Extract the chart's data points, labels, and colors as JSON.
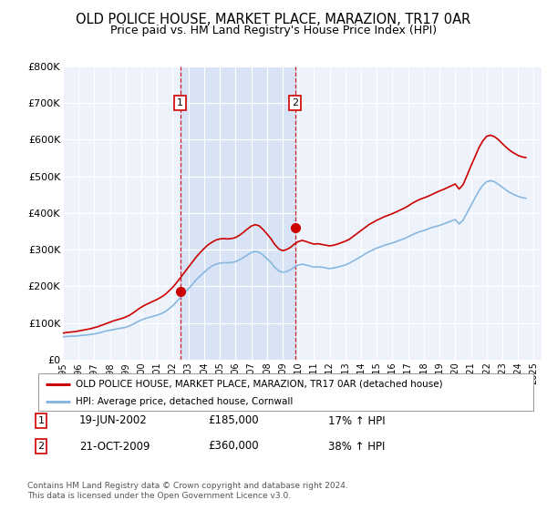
{
  "title": "OLD POLICE HOUSE, MARKET PLACE, MARAZION, TR17 0AR",
  "subtitle": "Price paid vs. HM Land Registry's House Price Index (HPI)",
  "title_fontsize": 10.5,
  "subtitle_fontsize": 9,
  "ylim": [
    0,
    800000
  ],
  "yticks": [
    0,
    100000,
    200000,
    300000,
    400000,
    500000,
    600000,
    700000,
    800000
  ],
  "ytick_labels": [
    "£0",
    "£100K",
    "£200K",
    "£300K",
    "£400K",
    "£500K",
    "£600K",
    "£700K",
    "£800K"
  ],
  "xlim_start": 1995.0,
  "xlim_end": 2025.5,
  "x_years": [
    1995,
    1996,
    1997,
    1998,
    1999,
    2000,
    2001,
    2002,
    2003,
    2004,
    2005,
    2006,
    2007,
    2008,
    2009,
    2010,
    2011,
    2012,
    2013,
    2014,
    2015,
    2016,
    2017,
    2018,
    2019,
    2020,
    2021,
    2022,
    2023,
    2024,
    2025
  ],
  "background_color": "#ffffff",
  "plot_bg_color": "#eef2fb",
  "shade_color": "#d8e4f5",
  "grid_color": "#ffffff",
  "red_color": "#cc0000",
  "blue_color": "#88b8e0",
  "sale1_x": 2002.47,
  "sale1_y": 185000,
  "sale2_x": 2009.8,
  "sale2_y": 360000,
  "legend_label_red": "OLD POLICE HOUSE, MARKET PLACE, MARAZION, TR17 0AR (detached house)",
  "legend_label_blue": "HPI: Average price, detached house, Cornwall",
  "table_rows": [
    {
      "num": "1",
      "date": "19-JUN-2002",
      "price": "£185,000",
      "hpi": "17% ↑ HPI"
    },
    {
      "num": "2",
      "date": "21-OCT-2009",
      "price": "£360,000",
      "hpi": "38% ↑ HPI"
    }
  ],
  "footnote": "Contains HM Land Registry data © Crown copyright and database right 2024.\nThis data is licensed under the Open Government Licence v3.0.",
  "hpi_data": {
    "years": [
      1995.0,
      1995.25,
      1995.5,
      1995.75,
      1996.0,
      1996.25,
      1996.5,
      1996.75,
      1997.0,
      1997.25,
      1997.5,
      1997.75,
      1998.0,
      1998.25,
      1998.5,
      1998.75,
      1999.0,
      1999.25,
      1999.5,
      1999.75,
      2000.0,
      2000.25,
      2000.5,
      2000.75,
      2001.0,
      2001.25,
      2001.5,
      2001.75,
      2002.0,
      2002.25,
      2002.5,
      2002.75,
      2003.0,
      2003.25,
      2003.5,
      2003.75,
      2004.0,
      2004.25,
      2004.5,
      2004.75,
      2005.0,
      2005.25,
      2005.5,
      2005.75,
      2006.0,
      2006.25,
      2006.5,
      2006.75,
      2007.0,
      2007.25,
      2007.5,
      2007.75,
      2008.0,
      2008.25,
      2008.5,
      2008.75,
      2009.0,
      2009.25,
      2009.5,
      2009.75,
      2010.0,
      2010.25,
      2010.5,
      2010.75,
      2011.0,
      2011.25,
      2011.5,
      2011.75,
      2012.0,
      2012.25,
      2012.5,
      2012.75,
      2013.0,
      2013.25,
      2013.5,
      2013.75,
      2014.0,
      2014.25,
      2014.5,
      2014.75,
      2015.0,
      2015.25,
      2015.5,
      2015.75,
      2016.0,
      2016.25,
      2016.5,
      2016.75,
      2017.0,
      2017.25,
      2017.5,
      2017.75,
      2018.0,
      2018.25,
      2018.5,
      2018.75,
      2019.0,
      2019.25,
      2019.5,
      2019.75,
      2020.0,
      2020.25,
      2020.5,
      2020.75,
      2021.0,
      2021.25,
      2021.5,
      2021.75,
      2022.0,
      2022.25,
      2022.5,
      2022.75,
      2023.0,
      2023.25,
      2023.5,
      2023.75,
      2024.0,
      2024.25,
      2024.5
    ],
    "values": [
      62000,
      63000,
      63500,
      64000,
      65000,
      66000,
      67000,
      68500,
      70000,
      72000,
      75000,
      78000,
      80000,
      82000,
      84000,
      86000,
      88000,
      92000,
      97000,
      103000,
      108000,
      112000,
      115000,
      118000,
      121000,
      125000,
      130000,
      138000,
      147000,
      158000,
      170000,
      182000,
      193000,
      205000,
      218000,
      228000,
      238000,
      248000,
      255000,
      260000,
      263000,
      264000,
      264000,
      265000,
      267000,
      272000,
      278000,
      285000,
      292000,
      295000,
      293000,
      285000,
      275000,
      265000,
      252000,
      242000,
      238000,
      240000,
      245000,
      252000,
      258000,
      260000,
      258000,
      255000,
      252000,
      253000,
      252000,
      250000,
      248000,
      250000,
      252000,
      255000,
      258000,
      263000,
      269000,
      275000,
      281000,
      288000,
      294000,
      299000,
      304000,
      308000,
      312000,
      315000,
      318000,
      322000,
      326000,
      330000,
      335000,
      340000,
      345000,
      349000,
      352000,
      356000,
      360000,
      363000,
      366000,
      370000,
      374000,
      378000,
      382000,
      370000,
      380000,
      400000,
      420000,
      440000,
      460000,
      475000,
      485000,
      488000,
      485000,
      478000,
      470000,
      462000,
      455000,
      450000,
      445000,
      442000,
      440000
    ]
  },
  "property_data": {
    "years": [
      1995.0,
      1995.25,
      1995.5,
      1995.75,
      1996.0,
      1996.25,
      1996.5,
      1996.75,
      1997.0,
      1997.25,
      1997.5,
      1997.75,
      1998.0,
      1998.25,
      1998.5,
      1998.75,
      1999.0,
      1999.25,
      1999.5,
      1999.75,
      2000.0,
      2000.25,
      2000.5,
      2000.75,
      2001.0,
      2001.25,
      2001.5,
      2001.75,
      2002.0,
      2002.25,
      2002.5,
      2002.75,
      2003.0,
      2003.25,
      2003.5,
      2003.75,
      2004.0,
      2004.25,
      2004.5,
      2004.75,
      2005.0,
      2005.25,
      2005.5,
      2005.75,
      2006.0,
      2006.25,
      2006.5,
      2006.75,
      2007.0,
      2007.25,
      2007.5,
      2007.75,
      2008.0,
      2008.25,
      2008.5,
      2008.75,
      2009.0,
      2009.25,
      2009.5,
      2009.75,
      2010.0,
      2010.25,
      2010.5,
      2010.75,
      2011.0,
      2011.25,
      2011.5,
      2011.75,
      2012.0,
      2012.25,
      2012.5,
      2012.75,
      2013.0,
      2013.25,
      2013.5,
      2013.75,
      2014.0,
      2014.25,
      2014.5,
      2014.75,
      2015.0,
      2015.25,
      2015.5,
      2015.75,
      2016.0,
      2016.25,
      2016.5,
      2016.75,
      2017.0,
      2017.25,
      2017.5,
      2017.75,
      2018.0,
      2018.25,
      2018.5,
      2018.75,
      2019.0,
      2019.25,
      2019.5,
      2019.75,
      2020.0,
      2020.25,
      2020.5,
      2020.75,
      2021.0,
      2021.25,
      2021.5,
      2021.75,
      2022.0,
      2022.25,
      2022.5,
      2022.75,
      2023.0,
      2023.25,
      2023.5,
      2023.75,
      2024.0,
      2024.25,
      2024.5
    ],
    "values": [
      72000,
      74000,
      75000,
      76000,
      78000,
      80000,
      82000,
      84000,
      87000,
      90000,
      94000,
      98000,
      102000,
      106000,
      109000,
      112000,
      116000,
      121000,
      128000,
      136000,
      143000,
      149000,
      154000,
      159000,
      164000,
      170000,
      177000,
      187000,
      197000,
      210000,
      224000,
      238000,
      252000,
      266000,
      280000,
      292000,
      303000,
      313000,
      320000,
      326000,
      329000,
      330000,
      329000,
      330000,
      333000,
      339000,
      347000,
      356000,
      364000,
      368000,
      365000,
      355000,
      343000,
      330000,
      314000,
      302000,
      297000,
      300000,
      306000,
      315000,
      322000,
      325000,
      322000,
      318000,
      315000,
      316000,
      314000,
      312000,
      310000,
      312000,
      315000,
      319000,
      323000,
      328000,
      336000,
      344000,
      352000,
      360000,
      368000,
      374000,
      380000,
      385000,
      390000,
      394000,
      398000,
      403000,
      408000,
      413000,
      419000,
      426000,
      432000,
      437000,
      441000,
      445000,
      450000,
      455000,
      460000,
      464000,
      469000,
      474000,
      479000,
      465000,
      477000,
      502000,
      528000,
      552000,
      577000,
      596000,
      609000,
      612000,
      608000,
      600000,
      589000,
      579000,
      570000,
      563000,
      557000,
      553000,
      551000
    ]
  }
}
